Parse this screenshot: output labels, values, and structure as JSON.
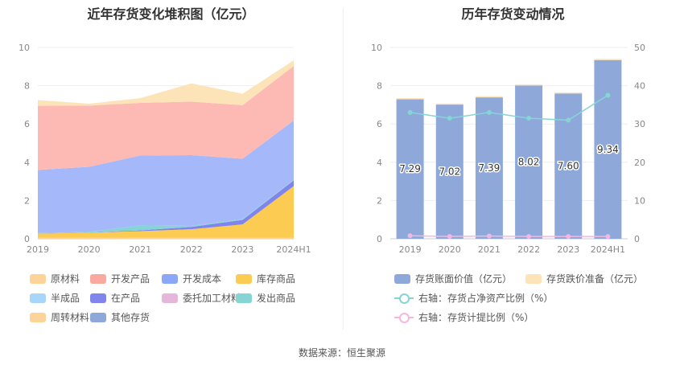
{
  "left_title": "近年存货变化堆积图（亿元）",
  "right_title": "历年存货变动情况",
  "source": "数据来源：恒生聚源",
  "chart_data": [
    {
      "type": "area",
      "stacked": true,
      "categories": [
        "2019",
        "2020",
        "2021",
        "2022",
        "2023",
        "2024H1"
      ],
      "ylim": [
        0,
        10
      ],
      "yticks": [
        0,
        2,
        4,
        6,
        8,
        10
      ],
      "series": [
        {
          "name": "原材料",
          "color": "#fcd49a",
          "values": [
            0.05,
            0.05,
            0.05,
            0.05,
            0.05,
            0.05
          ]
        },
        {
          "name": "开发产品",
          "color": "#f9a99f",
          "values": [
            0,
            0,
            0,
            0,
            0,
            0
          ]
        },
        {
          "name": "开发成本",
          "color": "#8da7f8",
          "values": [
            0,
            0,
            0,
            0,
            0,
            0
          ]
        },
        {
          "name": "库存商品",
          "color": "#fccb52",
          "values": [
            0.22,
            0.27,
            0.35,
            0.45,
            0.7,
            2.7
          ]
        },
        {
          "name": "半成品",
          "color": "#a8d6f8",
          "values": [
            0,
            0,
            0,
            0,
            0,
            0
          ]
        },
        {
          "name": "在产品",
          "color": "#8085ee",
          "values": [
            0.01,
            0.01,
            0.04,
            0.12,
            0.24,
            0.3
          ]
        },
        {
          "name": "委托加工材料",
          "color": "#e5b7db",
          "values": [
            0,
            0,
            0,
            0,
            0,
            0
          ]
        },
        {
          "name": "发出商品",
          "color": "#86d5d5",
          "values": [
            0.02,
            0.03,
            0.26,
            0.05,
            0.04,
            0.03
          ]
        },
        {
          "name": "周转材料",
          "color": "#fcd49a",
          "values": [
            0,
            0,
            0,
            0,
            0,
            0
          ]
        },
        {
          "name": "其他存货",
          "color": "#8ea9d9",
          "values": [
            0,
            0,
            0,
            0,
            0,
            0
          ]
        },
        {
          "name": "开发成本",
          "color": "#a4b8fa",
          "values": [
            3.3,
            3.4,
            3.65,
            3.7,
            3.15,
            3.1
          ]
        },
        {
          "name": "开发产品",
          "color": "#fdbab4",
          "values": [
            3.35,
            3.2,
            2.75,
            2.8,
            2.8,
            2.85
          ]
        },
        {
          "name": "原材料",
          "color": "#fde3b8",
          "values": [
            0.3,
            0.1,
            0.25,
            0.95,
            0.6,
            0.3
          ]
        }
      ]
    },
    {
      "type": "bar",
      "categories": [
        "2019",
        "2020",
        "2021",
        "2022",
        "2023",
        "2024H1"
      ],
      "ylim": [
        0,
        10
      ],
      "yticks": [
        0,
        2,
        4,
        6,
        8,
        10
      ],
      "y2lim": [
        0,
        50
      ],
      "y2ticks": [
        0,
        10,
        20,
        30,
        40,
        50
      ],
      "series": [
        {
          "name": "存货账面价值（亿元）",
          "color": "#8ea9d9",
          "values": [
            7.29,
            7.02,
            7.39,
            8.02,
            7.6,
            9.34
          ]
        },
        {
          "name": "存货跌价准备（亿元）",
          "color": "#fde3b8",
          "values": [
            0.06,
            0.05,
            0.06,
            0.05,
            0.05,
            0.06
          ]
        },
        {
          "name": "右轴：存货占净资产比例（%）",
          "color": "#86d5d5",
          "axis": "right",
          "values": [
            33,
            31.5,
            33,
            31.5,
            31,
            37.5
          ]
        },
        {
          "name": "右轴：存货计提比例（%）",
          "color": "#f2b8e0",
          "axis": "right",
          "values": [
            0.8,
            0.6,
            0.7,
            0.6,
            0.6,
            0.6
          ]
        }
      ],
      "labels": [
        "7.29",
        "7.02",
        "7.39",
        "8.02",
        "7.60",
        "9.34"
      ]
    }
  ],
  "legend_left": [
    {
      "name": "原材料",
      "color": "#fcd49a"
    },
    {
      "name": "开发产品",
      "color": "#f9a99f"
    },
    {
      "name": "开发成本",
      "color": "#8da7f8"
    },
    {
      "name": "库存商品",
      "color": "#fccb52"
    },
    {
      "name": "半成品",
      "color": "#a8d6f8"
    },
    {
      "name": "在产品",
      "color": "#8085ee"
    },
    {
      "name": "委托加工材料",
      "color": "#e5b7db"
    },
    {
      "name": "发出商品",
      "color": "#86d5d5"
    },
    {
      "name": "周转材料",
      "color": "#fcd49a"
    },
    {
      "name": "其他存货",
      "color": "#8ea9d9"
    }
  ],
  "legend_right": [
    {
      "name": "存货账面价值（亿元）",
      "color": "#8ea9d9",
      "kind": "swatch"
    },
    {
      "name": "存货跌价准备（亿元）",
      "color": "#fde3b8",
      "kind": "swatch"
    },
    {
      "name": "右轴：存货占净资产比例（%）",
      "color": "#86d5d5",
      "kind": "line"
    },
    {
      "name": "右轴：存货计提比例（%）",
      "color": "#f2b8e0",
      "kind": "line"
    }
  ]
}
